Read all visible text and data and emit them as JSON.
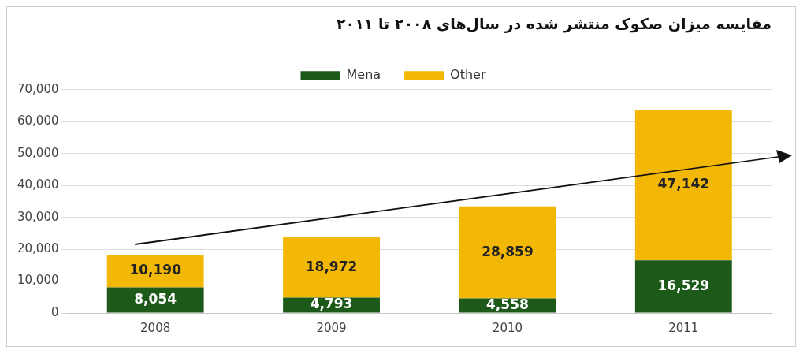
{
  "chart_data": {
    "type": "bar",
    "title": "مقایسه میزان صکوک منتشر شده در سال‌های ۲۰۰۸ تا ۲۰۱۱",
    "categories": [
      "2008",
      "2009",
      "2010",
      "2011"
    ],
    "stacked": true,
    "series": [
      {
        "name": "Mena",
        "color": "#1d5a1a",
        "values": [
          8054,
          4793,
          4558,
          16529
        ],
        "value_labels": [
          "8,054",
          "4,793",
          "4,558",
          "16,529"
        ]
      },
      {
        "name": "Other",
        "color": "#f3b805",
        "values": [
          10190,
          18972,
          28859,
          47142
        ],
        "value_labels": [
          "10,190",
          "18,972",
          "28,859",
          "47,142"
        ]
      }
    ],
    "ylim": [
      0,
      70000
    ],
    "yticks": [
      0,
      {
        "value": 10000,
        "label": "10,000"
      },
      {
        "value": 20000,
        "label": "20,000"
      },
      {
        "value": 30000,
        "label": "30,000"
      },
      {
        "value": 40000,
        "label": "40,000"
      },
      {
        "value": 50000,
        "label": "50,000"
      },
      {
        "value": 60000,
        "label": "60,000"
      },
      {
        "value": 70000,
        "label": "70,000"
      }
    ],
    "grid": "y",
    "legend": "top"
  }
}
